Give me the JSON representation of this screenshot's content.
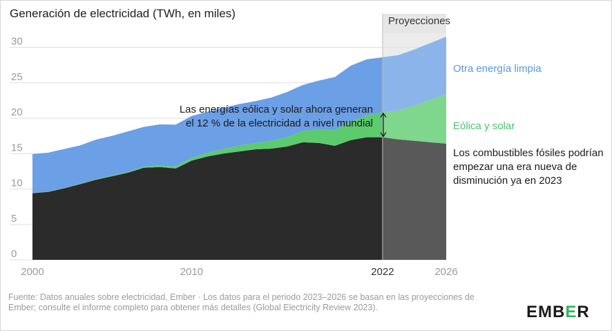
{
  "chart_data": {
    "type": "area",
    "title": "Generación de electricidad (TWh, en miles)",
    "ylim": [
      0,
      32
    ],
    "yticks": [
      0,
      5,
      10,
      15,
      20,
      25,
      30
    ],
    "xlim": [
      2000,
      2026
    ],
    "xticks": [
      2000,
      2010,
      2022,
      2026
    ],
    "grid": true,
    "projection": {
      "start": 2022,
      "end": 2026,
      "label": "Proyecciones"
    },
    "x": [
      2000,
      2001,
      2002,
      2003,
      2004,
      2005,
      2006,
      2007,
      2008,
      2009,
      2010,
      2011,
      2012,
      2013,
      2014,
      2015,
      2016,
      2017,
      2018,
      2019,
      2020,
      2021,
      2022,
      2023,
      2024,
      2025,
      2026
    ],
    "series": [
      {
        "name": "Los combustibles fósiles podrían empezar una era nueva de disminución ya en 2023",
        "color": "#2b2b2b",
        "values": [
          9.4,
          9.6,
          10.1,
          10.7,
          11.3,
          11.8,
          12.3,
          13.0,
          13.1,
          12.9,
          14.0,
          14.6,
          15.0,
          15.3,
          15.6,
          15.7,
          16.0,
          16.6,
          16.5,
          16.1,
          16.9,
          17.3,
          17.3,
          17.0,
          16.8,
          16.6,
          16.4
        ]
      },
      {
        "name": "Eólica y solar",
        "color": "#6fd17f",
        "values": [
          0.03,
          0.04,
          0.05,
          0.06,
          0.08,
          0.1,
          0.13,
          0.17,
          0.22,
          0.28,
          0.4,
          0.5,
          0.65,
          0.8,
          0.9,
          1.1,
          1.3,
          1.6,
          1.9,
          2.2,
          2.6,
          3.1,
          3.5,
          4.1,
          5.0,
          6.0,
          7.0
        ]
      },
      {
        "name": "Otra energía limpia",
        "color": "#6b9fe6",
        "values": [
          5.5,
          5.5,
          5.5,
          5.4,
          5.6,
          5.6,
          5.7,
          5.6,
          5.8,
          5.9,
          5.9,
          5.8,
          5.8,
          5.9,
          5.9,
          6.1,
          6.4,
          6.5,
          6.9,
          7.5,
          7.9,
          7.9,
          7.8,
          7.8,
          7.9,
          8.0,
          8.1
        ]
      }
    ]
  },
  "labels": {
    "title": "Generación de electricidad (TWh, en miles)",
    "projections": "Proyecciones",
    "annotation_line1": "Las energías eólica y solar ahora generan",
    "annotation_line2": "el 12 % de la electricidad a nivel mundial",
    "series_clean": "Otra energía limpia",
    "series_wind_solar": "Eólica y solar",
    "series_fossil": "Los combustibles fósiles podrían empezar una era nueva de disminución ya en 2023",
    "source": "Fuente: Datos anuales sobre electricidad, Ember · Los datos para el periodo 2023–2026 se basan en las proyecciones de Ember; consulte el informe completo para obtener más detalles (Global Electricity Review 2023).",
    "logo_part1": "EMB",
    "logo_part2": "E",
    "logo_part3": "R"
  },
  "colors": {
    "fossil": "#2b2b2b",
    "fossil_projection": "#555555",
    "wind_solar": "#5ccb6e",
    "clean": "#6b9fe6",
    "projection_band": "#e6e6e6",
    "grid": "#dddddd",
    "axis_text": "#9a9a9a"
  }
}
